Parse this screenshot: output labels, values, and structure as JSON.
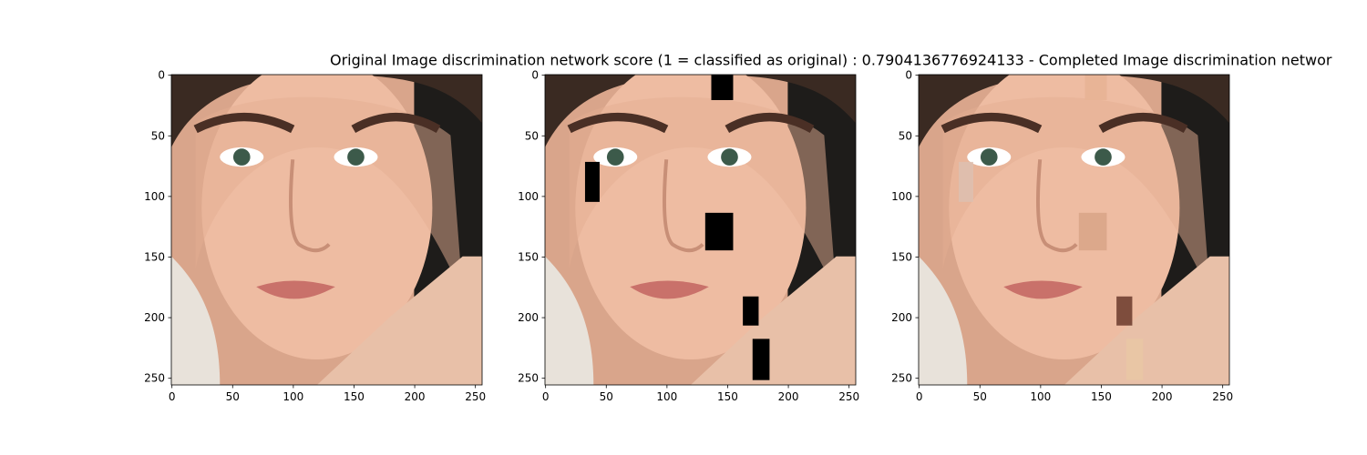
{
  "title": "Original Image discrimination network score (1 = classified as original) : 0.7904136776924133 - Completed Image discrimination networ",
  "chart_data": [
    {
      "type": "image",
      "xlim": [
        -0.5,
        255.5
      ],
      "ylim": [
        255.5,
        -0.5
      ],
      "xticks": [
        0,
        50,
        100,
        150,
        200,
        250
      ],
      "yticks": [
        0,
        50,
        100,
        150,
        200,
        250
      ]
    },
    {
      "type": "image",
      "xlim": [
        -0.5,
        255.5
      ],
      "ylim": [
        255.5,
        -0.5
      ],
      "xticks": [
        0,
        50,
        100,
        150,
        200,
        250
      ],
      "yticks": [
        0,
        50,
        100,
        150,
        200,
        250
      ]
    },
    {
      "type": "image",
      "xlim": [
        -0.5,
        255.5
      ],
      "ylim": [
        255.5,
        -0.5
      ],
      "xticks": [
        0,
        50,
        100,
        150,
        200,
        250
      ],
      "yticks": [
        0,
        50,
        100,
        150,
        200,
        250
      ]
    }
  ]
}
